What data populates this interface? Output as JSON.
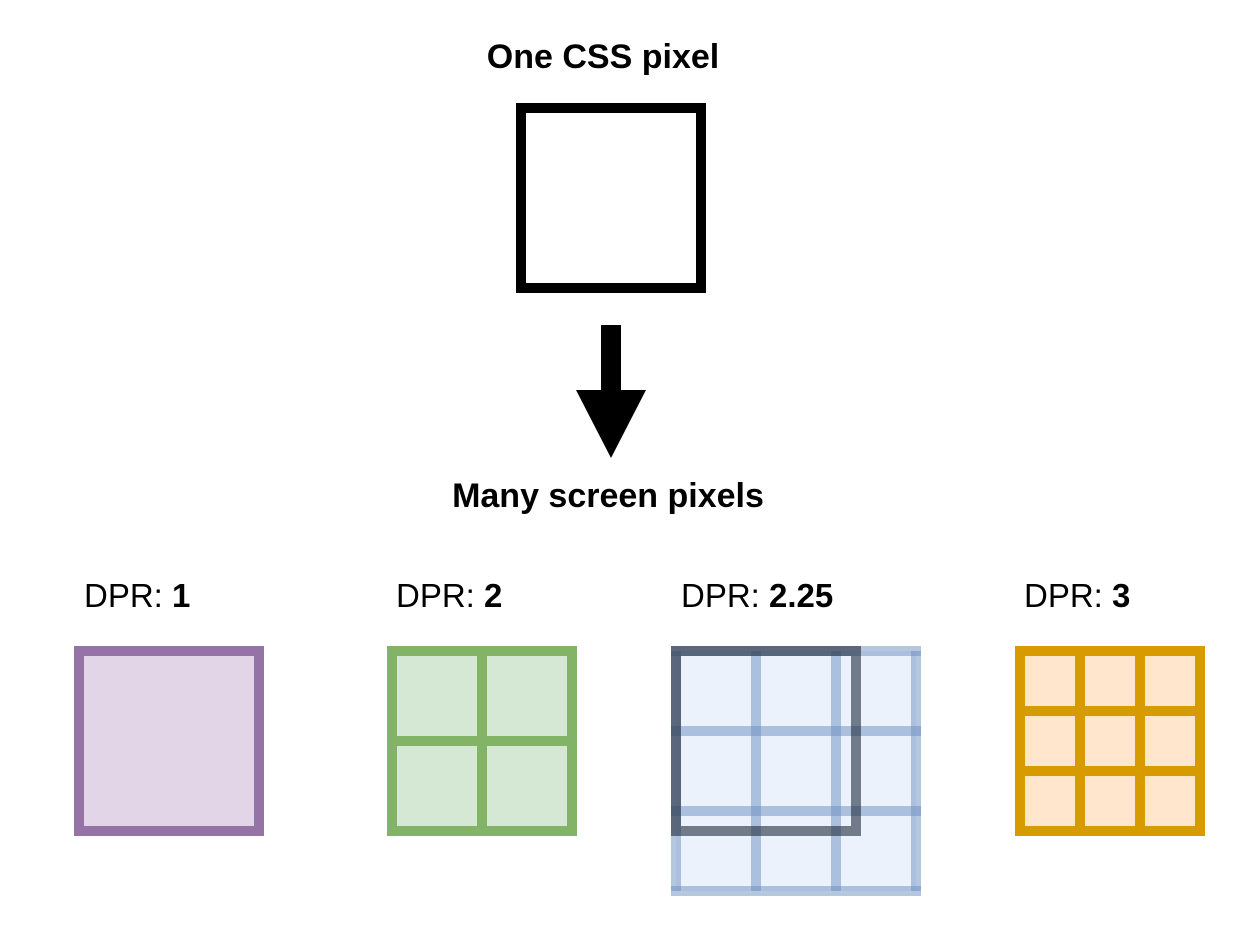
{
  "top_label": "One CSS pixel",
  "bottom_label": "Many screen pixels",
  "dpr_prefix": "DPR: ",
  "groups": [
    {
      "ratio": "1",
      "stroke": "#9673A6",
      "fill": "#E1D5E7"
    },
    {
      "ratio": "2",
      "stroke": "#82B366",
      "fill": "#D5E8D4"
    },
    {
      "ratio": "2.25",
      "stroke": "#6C8EBF",
      "fill": "#DAE8FC"
    },
    {
      "ratio": "3",
      "stroke": "#D79B00",
      "fill": "#FFE6CC"
    }
  ]
}
